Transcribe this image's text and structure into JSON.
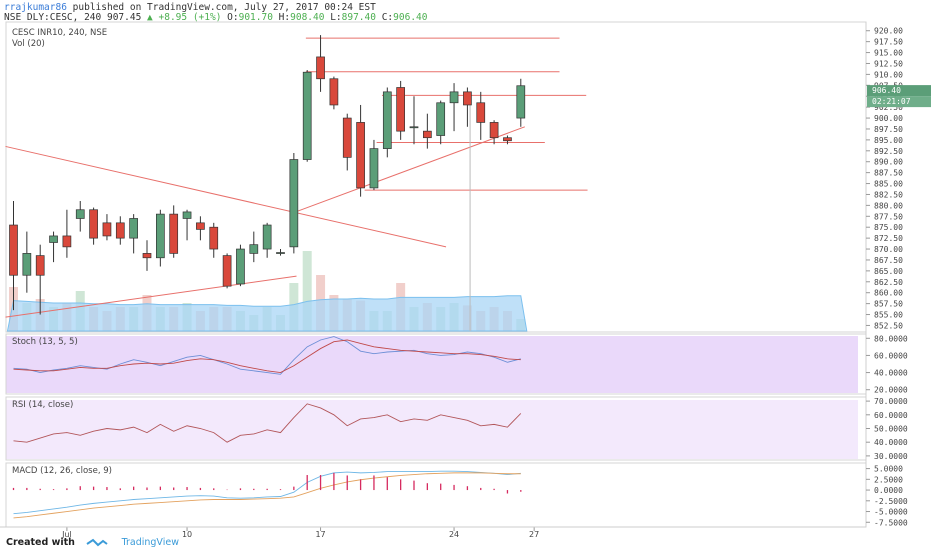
{
  "header": {
    "author": "rrajkumar86",
    "published": "published on TradingView.com, July 27, 2017 00:24 EST",
    "symbol_line": "NSE_DLY:CESC, 240",
    "last": "907.45",
    "change": "+8.95 (+1%)",
    "o_label": "O:",
    "o": "901.70",
    "h_label": "H:",
    "h": "908.40",
    "l_label": "L:",
    "l": "897.40",
    "c_label": "C:",
    "c": "906.40"
  },
  "footer": {
    "created_with": "Created with",
    "brand": "TradingView"
  },
  "colors": {
    "up": "#5b9e78",
    "down": "#d9483b",
    "trendline": "#e8706b",
    "stoch_bg": "#ead9fa",
    "rsi_bg": "#f3e9fc"
  },
  "chart_data": [
    {
      "type": "candlestick",
      "title": "CESC INR10, 240, NSE",
      "volume_label": "Vol (20)",
      "price_label": "906.40",
      "time_label": "02:21:07",
      "ylim": [
        851,
        922
      ],
      "y_ticks": [
        "920.00",
        "917.50",
        "915.00",
        "912.50",
        "910.00",
        "907.50",
        "905.00",
        "902.50",
        "900.00",
        "897.50",
        "895.00",
        "892.50",
        "890.00",
        "887.50",
        "885.00",
        "882.50",
        "880.00",
        "877.50",
        "875.00",
        "872.50",
        "870.00",
        "867.50",
        "865.00",
        "862.50",
        "860.00",
        "857.50",
        "855.00",
        "852.50"
      ],
      "x_ticks": [
        {
          "label": "Jul",
          "bar": 4
        },
        {
          "label": "10",
          "bar": 13
        },
        {
          "label": "17",
          "bar": 23
        },
        {
          "label": "24",
          "bar": 33
        },
        {
          "label": "27",
          "bar": 39
        }
      ],
      "candles": [
        {
          "o": 875.5,
          "h": 881,
          "l": 856,
          "c": 864
        },
        {
          "o": 864,
          "h": 874,
          "l": 860,
          "c": 869
        },
        {
          "o": 868.5,
          "h": 871,
          "l": 855,
          "c": 864
        },
        {
          "o": 871.5,
          "h": 874,
          "l": 867,
          "c": 873
        },
        {
          "o": 873,
          "h": 879,
          "l": 868,
          "c": 870.5
        },
        {
          "o": 877,
          "h": 881,
          "l": 874,
          "c": 879
        },
        {
          "o": 879,
          "h": 879.5,
          "l": 871,
          "c": 872.5
        },
        {
          "o": 876,
          "h": 878,
          "l": 872,
          "c": 873
        },
        {
          "o": 876,
          "h": 877.5,
          "l": 871,
          "c": 872.5
        },
        {
          "o": 872.5,
          "h": 878,
          "l": 869,
          "c": 877
        },
        {
          "o": 869,
          "h": 872,
          "l": 865,
          "c": 868
        },
        {
          "o": 868,
          "h": 879,
          "l": 866,
          "c": 878
        },
        {
          "o": 878,
          "h": 880,
          "l": 868,
          "c": 869
        },
        {
          "o": 877,
          "h": 879,
          "l": 872,
          "c": 878.5
        },
        {
          "o": 876,
          "h": 877.5,
          "l": 872,
          "c": 874.5
        },
        {
          "o": 875,
          "h": 876,
          "l": 868,
          "c": 870
        },
        {
          "o": 868.5,
          "h": 869,
          "l": 861,
          "c": 861.5
        },
        {
          "o": 862,
          "h": 871,
          "l": 861.5,
          "c": 870
        },
        {
          "o": 869,
          "h": 874,
          "l": 867,
          "c": 871
        },
        {
          "o": 870,
          "h": 876,
          "l": 868,
          "c": 875.5
        },
        {
          "o": 869,
          "h": 870,
          "l": 868.5,
          "c": 869.2
        },
        {
          "o": 870.5,
          "h": 892,
          "l": 869,
          "c": 890.5
        },
        {
          "o": 890.5,
          "h": 911,
          "l": 890,
          "c": 910.5
        },
        {
          "o": 914,
          "h": 919,
          "l": 906,
          "c": 909
        },
        {
          "o": 909,
          "h": 909.5,
          "l": 902,
          "c": 903
        },
        {
          "o": 900,
          "h": 901,
          "l": 888,
          "c": 891
        },
        {
          "o": 899,
          "h": 903,
          "l": 882,
          "c": 884
        },
        {
          "o": 884,
          "h": 895,
          "l": 883.5,
          "c": 893
        },
        {
          "o": 893,
          "h": 907,
          "l": 891,
          "c": 906
        },
        {
          "o": 907,
          "h": 908.5,
          "l": 895,
          "c": 897
        },
        {
          "o": 898,
          "h": 905,
          "l": 894,
          "c": 898
        },
        {
          "o": 897,
          "h": 901,
          "l": 893,
          "c": 895.5
        },
        {
          "o": 896,
          "h": 904,
          "l": 894,
          "c": 903.5
        },
        {
          "o": 903.5,
          "h": 908,
          "l": 897,
          "c": 906
        },
        {
          "o": 906,
          "h": 907,
          "l": 898,
          "c": 903
        },
        {
          "o": 903.5,
          "h": 906,
          "l": 895,
          "c": 899
        },
        {
          "o": 899,
          "h": 899.5,
          "l": 894,
          "c": 895.5
        },
        {
          "o": 895.5,
          "h": 896,
          "l": 894,
          "c": 894.8
        },
        {
          "o": 900,
          "h": 909,
          "l": 898,
          "c": 907.4
        }
      ],
      "volume": [
        0.55,
        0.35,
        0.4,
        0.3,
        0.35,
        0.5,
        0.3,
        0.25,
        0.3,
        0.3,
        0.45,
        0.3,
        0.3,
        0.35,
        0.25,
        0.3,
        0.3,
        0.25,
        0.2,
        0.3,
        0.2,
        0.6,
        1.0,
        0.7,
        0.45,
        0.4,
        0.38,
        0.25,
        0.25,
        0.6,
        0.3,
        0.35,
        0.3,
        0.35,
        0.32,
        0.25,
        0.3,
        0.25,
        0.15
      ],
      "volume_ma": [
        0.38,
        0.37,
        0.36,
        0.35,
        0.35,
        0.35,
        0.34,
        0.34,
        0.33,
        0.33,
        0.34,
        0.33,
        0.33,
        0.33,
        0.33,
        0.33,
        0.32,
        0.32,
        0.31,
        0.31,
        0.31,
        0.33,
        0.37,
        0.39,
        0.4,
        0.4,
        0.41,
        0.4,
        0.4,
        0.42,
        0.42,
        0.42,
        0.42,
        0.42,
        0.43,
        0.43,
        0.43,
        0.44,
        0.44
      ]
    },
    {
      "type": "line",
      "title": "Stoch (13, 5, 5)",
      "ylim": [
        15,
        85
      ],
      "y_ticks": [
        "80.0000",
        "60.0000",
        "40.0000",
        "20.0000"
      ],
      "series": [
        {
          "values": [
            45,
            44,
            40,
            43,
            45,
            48,
            46,
            44,
            50,
            55,
            52,
            48,
            53,
            58,
            60,
            55,
            50,
            44,
            42,
            40,
            38,
            55,
            70,
            78,
            82,
            76,
            65,
            62,
            64,
            65,
            66,
            62,
            60,
            61,
            64,
            62,
            58,
            52,
            56
          ]
        },
        {
          "values": [
            44,
            43,
            42,
            42,
            44,
            46,
            45,
            45,
            48,
            50,
            51,
            50,
            51,
            54,
            56,
            55,
            52,
            48,
            45,
            42,
            40,
            48,
            58,
            68,
            76,
            78,
            74,
            70,
            68,
            66,
            65,
            64,
            63,
            62,
            62,
            61,
            59,
            56,
            55
          ]
        }
      ]
    },
    {
      "type": "line",
      "title": "RSI (14, close)",
      "ylim": [
        27,
        73
      ],
      "y_ticks": [
        "70.0000",
        "60.0000",
        "50.0000",
        "40.0000",
        "30.0000"
      ],
      "series": [
        {
          "values": [
            41,
            40,
            43,
            46,
            47,
            45,
            48,
            50,
            49,
            51,
            47,
            53,
            48,
            52,
            50,
            47,
            40,
            45,
            46,
            49,
            47,
            58,
            68,
            65,
            60,
            52,
            57,
            58,
            60,
            55,
            57,
            56,
            60,
            58,
            56,
            52,
            53,
            51,
            61
          ]
        }
      ]
    },
    {
      "type": "bar",
      "title": "MACD (12, 26, close, 9)",
      "ylim": [
        -8.6,
        6.3
      ],
      "y_ticks": [
        "5.0000",
        "2.5000",
        "0.0000",
        "-2.5000",
        "-5.0000",
        "-7.5000"
      ],
      "histogram": [
        0.5,
        0.5,
        0.3,
        0.2,
        0.4,
        0.9,
        0.8,
        0.7,
        0.4,
        0.8,
        0.6,
        0.8,
        0.6,
        0.7,
        0.5,
        0.4,
        0.1,
        0.4,
        0.3,
        0.3,
        0.2,
        0.8,
        3.5,
        3.5,
        4.0,
        3.4,
        2.5,
        3.4,
        3.0,
        2.5,
        2.2,
        1.6,
        1.5,
        1.2,
        0.9,
        0.5,
        0.3,
        -0.8,
        -0.4
      ],
      "series": [
        {
          "values": [
            -5.5,
            -5.2,
            -4.8,
            -4.4,
            -4.0,
            -3.5,
            -3.1,
            -2.8,
            -2.5,
            -2.2,
            -2.0,
            -1.8,
            -1.6,
            -1.4,
            -1.3,
            -1.4,
            -1.8,
            -1.9,
            -1.8,
            -1.6,
            -1.5,
            -0.5,
            1.8,
            3.2,
            4.0,
            4.2,
            4.0,
            4.1,
            4.3,
            4.3,
            4.3,
            4.3,
            4.4,
            4.4,
            4.3,
            4.1,
            3.9,
            3.6,
            3.9
          ]
        },
        {
          "values": [
            -6.5,
            -6.2,
            -5.8,
            -5.4,
            -5.0,
            -4.6,
            -4.2,
            -3.9,
            -3.6,
            -3.3,
            -3.1,
            -2.9,
            -2.7,
            -2.5,
            -2.3,
            -2.2,
            -2.2,
            -2.2,
            -2.1,
            -2.0,
            -1.9,
            -1.6,
            -0.6,
            0.4,
            1.2,
            1.9,
            2.4,
            2.8,
            3.1,
            3.4,
            3.6,
            3.8,
            3.9,
            4.0,
            4.0,
            4.0,
            3.9,
            3.8,
            3.8
          ]
        }
      ]
    }
  ]
}
